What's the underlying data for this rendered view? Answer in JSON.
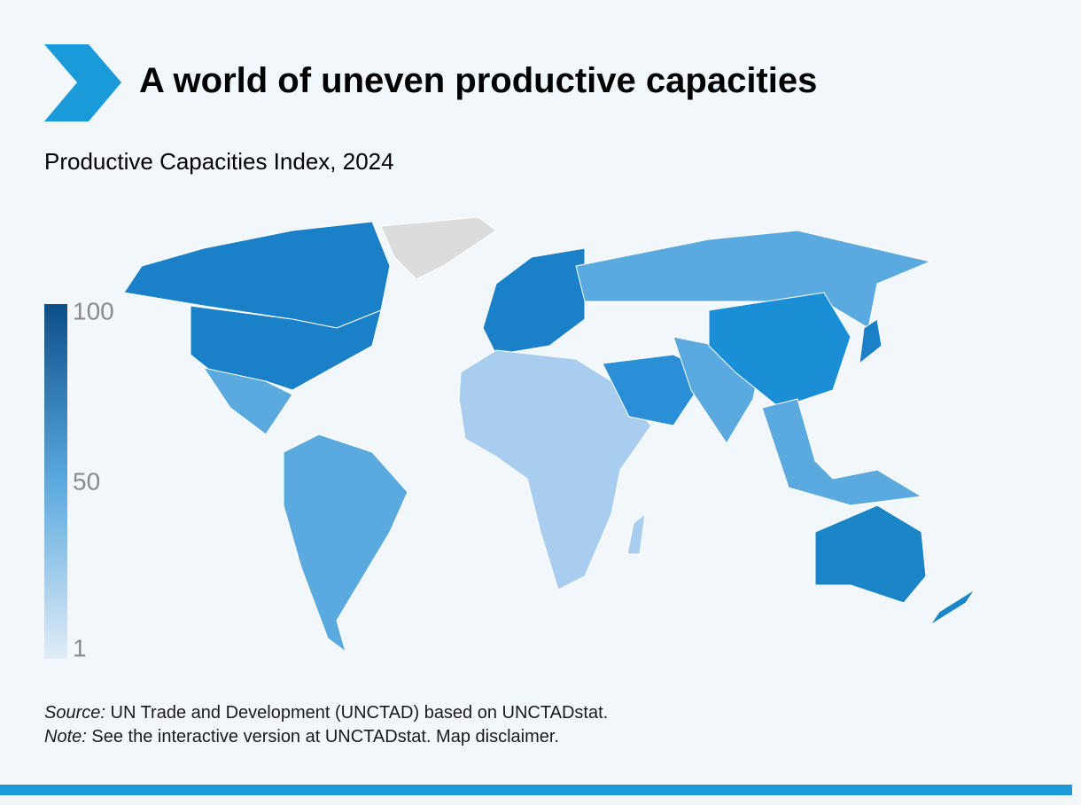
{
  "header": {
    "title": "A world of uneven productive capacities",
    "subtitle": "Productive Capacities Index, 2024"
  },
  "legend": {
    "ticks": [
      100,
      50,
      1
    ],
    "lim": [
      1,
      100
    ],
    "colors": [
      "#e1ecf7",
      "#0b4f8a"
    ]
  },
  "footer": {
    "source": {
      "label": "Source:",
      "text": "UN Trade and Development (UNCTAD) based on UNCTADstat."
    },
    "note": {
      "label": "Note:",
      "text": "See the interactive version at UNCTADstat. Map disclaimer."
    }
  }
}
